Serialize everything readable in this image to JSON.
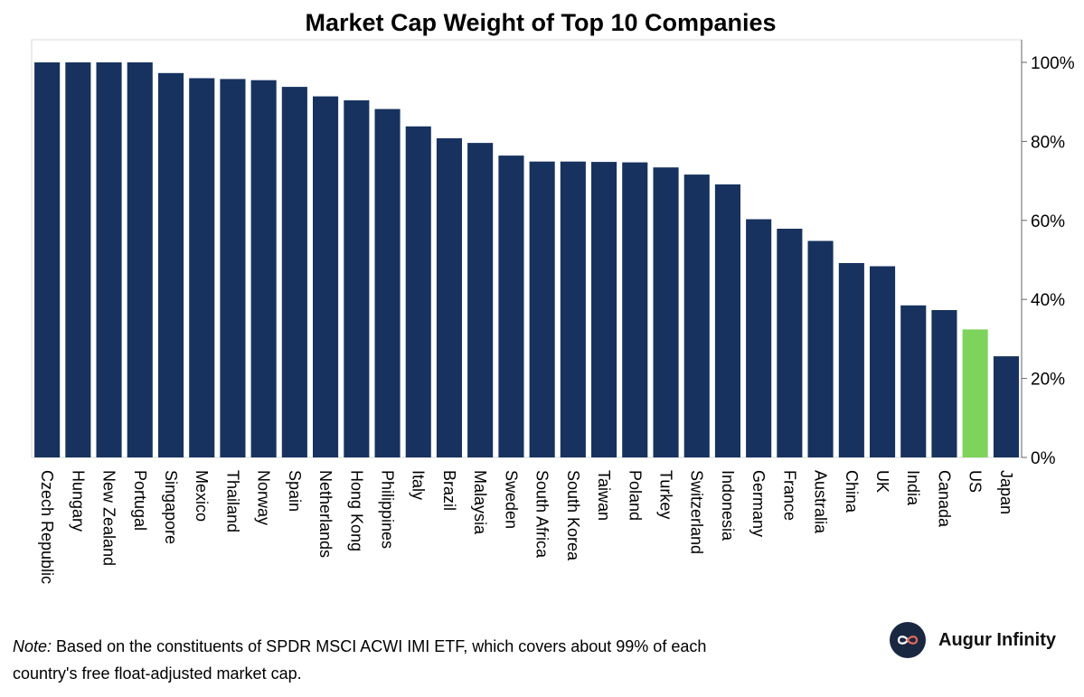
{
  "chart_data": {
    "type": "bar",
    "title": "Market Cap Weight of Top 10 Companies",
    "xlabel": "",
    "ylabel": "",
    "ylim": [
      0,
      100
    ],
    "yticks": [
      "0%",
      "20%",
      "40%",
      "60%",
      "80%",
      "100%"
    ],
    "grid": false,
    "categories": [
      "Czech Republic",
      "Hungary",
      "New Zealand",
      "Portugal",
      "Singapore",
      "Mexico",
      "Thailand",
      "Norway",
      "Spain",
      "Netherlands",
      "Hong Kong",
      "Philippines",
      "Italy",
      "Brazil",
      "Malaysia",
      "Sweden",
      "South Africa",
      "South Korea",
      "Taiwan",
      "Poland",
      "Turkey",
      "Switzerland",
      "Indonesia",
      "Germany",
      "France",
      "Australia",
      "China",
      "UK",
      "India",
      "Canada",
      "US",
      "Japan"
    ],
    "values": [
      100,
      100,
      100,
      100,
      97.3,
      96,
      95.8,
      95.5,
      93.8,
      91.4,
      90.4,
      88.2,
      83.8,
      80.8,
      79.6,
      76.4,
      74.9,
      74.9,
      74.8,
      74.7,
      73.4,
      71.6,
      69.1,
      60.3,
      57.9,
      54.8,
      49.2,
      48.4,
      38.5,
      37.3,
      32.4,
      25.6
    ],
    "bar_color": "#17325f",
    "highlight_category": "US",
    "highlight_color": "#7dd35b"
  },
  "footnote": {
    "prefix": "Note:",
    "text": " Based on the constituents of SPDR MSCI ACWI IMI ETF, which covers about 99% of each country's free float-adjusted market cap."
  },
  "brand": {
    "name": "Augur Infinity",
    "logo_icon": "infinity-icon"
  }
}
